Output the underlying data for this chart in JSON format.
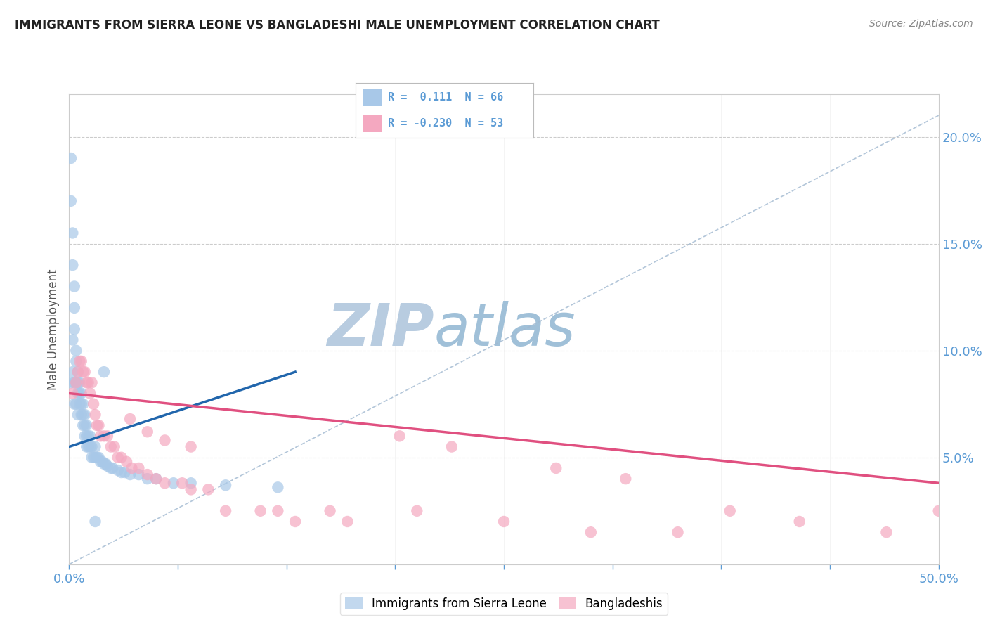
{
  "title": "IMMIGRANTS FROM SIERRA LEONE VS BANGLADESHI MALE UNEMPLOYMENT CORRELATION CHART",
  "source": "Source: ZipAtlas.com",
  "ylabel": "Male Unemployment",
  "legend_blue_r": "R =  0.111",
  "legend_blue_n": "N = 66",
  "legend_pink_r": "R = -0.230",
  "legend_pink_n": "N = 53",
  "blue_color": "#a8c8e8",
  "pink_color": "#f4a8c0",
  "blue_line_color": "#2166ac",
  "pink_line_color": "#e05080",
  "gray_line_color": "#a0b8d0",
  "title_color": "#222222",
  "axis_color": "#5b9bd5",
  "background_color": "#ffffff",
  "watermark_color_zip": "#b8cce0",
  "watermark_color_atlas": "#a0c0d8",
  "blue_scatter_x": [
    0.001,
    0.001,
    0.001,
    0.002,
    0.002,
    0.002,
    0.002,
    0.003,
    0.003,
    0.003,
    0.003,
    0.003,
    0.004,
    0.004,
    0.004,
    0.004,
    0.005,
    0.005,
    0.005,
    0.005,
    0.006,
    0.006,
    0.006,
    0.007,
    0.007,
    0.007,
    0.008,
    0.008,
    0.008,
    0.009,
    0.009,
    0.009,
    0.01,
    0.01,
    0.01,
    0.011,
    0.011,
    0.012,
    0.012,
    0.013,
    0.013,
    0.014,
    0.015,
    0.015,
    0.016,
    0.017,
    0.018,
    0.019,
    0.02,
    0.021,
    0.022,
    0.024,
    0.025,
    0.028,
    0.03,
    0.032,
    0.035,
    0.04,
    0.045,
    0.05,
    0.06,
    0.07,
    0.09,
    0.12,
    0.02,
    0.015
  ],
  "blue_scatter_y": [
    0.19,
    0.17,
    0.085,
    0.155,
    0.14,
    0.105,
    0.09,
    0.13,
    0.12,
    0.11,
    0.085,
    0.075,
    0.1,
    0.095,
    0.085,
    0.075,
    0.09,
    0.085,
    0.08,
    0.07,
    0.085,
    0.08,
    0.075,
    0.08,
    0.075,
    0.07,
    0.075,
    0.07,
    0.065,
    0.07,
    0.065,
    0.06,
    0.065,
    0.06,
    0.055,
    0.06,
    0.055,
    0.06,
    0.055,
    0.055,
    0.05,
    0.05,
    0.055,
    0.05,
    0.05,
    0.05,
    0.048,
    0.048,
    0.047,
    0.047,
    0.046,
    0.045,
    0.045,
    0.044,
    0.043,
    0.043,
    0.042,
    0.042,
    0.04,
    0.04,
    0.038,
    0.038,
    0.037,
    0.036,
    0.09,
    0.02
  ],
  "pink_scatter_x": [
    0.002,
    0.004,
    0.005,
    0.006,
    0.007,
    0.008,
    0.009,
    0.01,
    0.011,
    0.012,
    0.013,
    0.014,
    0.015,
    0.016,
    0.017,
    0.018,
    0.02,
    0.022,
    0.024,
    0.026,
    0.028,
    0.03,
    0.033,
    0.036,
    0.04,
    0.045,
    0.05,
    0.055,
    0.065,
    0.07,
    0.08,
    0.09,
    0.11,
    0.13,
    0.16,
    0.2,
    0.25,
    0.3,
    0.35,
    0.38,
    0.42,
    0.47,
    0.5,
    0.19,
    0.22,
    0.28,
    0.32,
    0.12,
    0.15,
    0.07,
    0.055,
    0.045,
    0.035
  ],
  "pink_scatter_y": [
    0.08,
    0.085,
    0.09,
    0.095,
    0.095,
    0.09,
    0.09,
    0.085,
    0.085,
    0.08,
    0.085,
    0.075,
    0.07,
    0.065,
    0.065,
    0.06,
    0.06,
    0.06,
    0.055,
    0.055,
    0.05,
    0.05,
    0.048,
    0.045,
    0.045,
    0.042,
    0.04,
    0.038,
    0.038,
    0.035,
    0.035,
    0.025,
    0.025,
    0.02,
    0.02,
    0.025,
    0.02,
    0.015,
    0.015,
    0.025,
    0.02,
    0.015,
    0.025,
    0.06,
    0.055,
    0.045,
    0.04,
    0.025,
    0.025,
    0.055,
    0.058,
    0.062,
    0.068
  ],
  "blue_line_x": [
    0.0,
    0.13
  ],
  "blue_line_y": [
    0.055,
    0.09
  ],
  "pink_line_x": [
    0.0,
    0.5
  ],
  "pink_line_y": [
    0.08,
    0.038
  ],
  "gray_dash_line_x": [
    0.0,
    0.5
  ],
  "gray_dash_line_y": [
    0.0,
    0.21
  ],
  "xlim": [
    0.0,
    0.5
  ],
  "ylim": [
    0.0,
    0.22
  ],
  "xticks": [
    0.0,
    0.0625,
    0.125,
    0.1875,
    0.25,
    0.3125,
    0.375,
    0.4375,
    0.5
  ],
  "xtick_labels": [
    "0.0%",
    "",
    "",
    "",
    "",
    "",
    "",
    "",
    "50.0%"
  ],
  "yticks_right": [
    0.05,
    0.1,
    0.15,
    0.2
  ],
  "ytick_labels_right": [
    "5.0%",
    "10.0%",
    "15.0%",
    "20.0%"
  ],
  "legend_label_blue": "Immigrants from Sierra Leone",
  "legend_label_pink": "Bangladeshis"
}
